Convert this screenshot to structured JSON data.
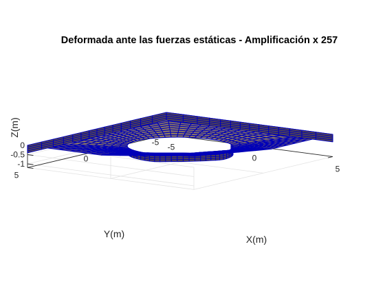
{
  "chart_data": {
    "type": "3d-mesh",
    "title": "Deformada ante las fuerzas estáticas - Amplificación x 257",
    "xlabel": "X(m)",
    "ylabel": "Y(m)",
    "zlabel": "Z(m)",
    "x_ticks": [
      "-5",
      "0",
      "5"
    ],
    "y_ticks": [
      "-5",
      "0",
      "5"
    ],
    "z_ticks": [
      "0",
      "-0.5",
      "-1"
    ],
    "xlim": [
      -5,
      5
    ],
    "ylim": [
      -5,
      5
    ],
    "zlim": [
      -1.2,
      0
    ],
    "plate": {
      "outer_half_width": 5,
      "hole_semi_axis_x": 2.6,
      "hole_semi_axis_y": 2.2,
      "thickness": 0.4,
      "layers": 4,
      "radial_divisions": 12,
      "angular_divisions": 56,
      "max_deflection": 0.35,
      "lifted_corner": [
        5,
        5
      ],
      "corner_lift": 0.6
    },
    "grid": true,
    "colors": {
      "face": "#8f7a62",
      "face_dark": "#5e4f42",
      "edge": "#0000b8",
      "axis": "#262626",
      "grid": "#e2e2e2"
    }
  }
}
